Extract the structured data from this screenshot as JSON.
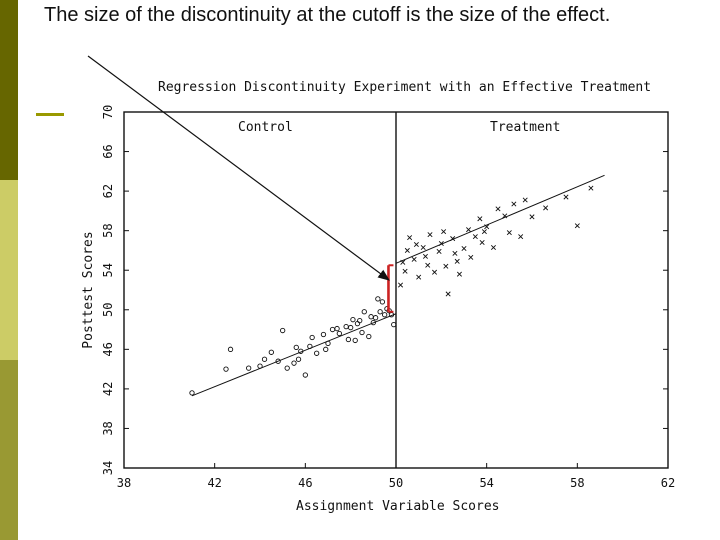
{
  "headline": "The size of the discontinuity at the cutoff is the size of the effect.",
  "colors": {
    "bar_dark": "#666600",
    "bar_light": "#cccc66",
    "bar_mid": "#999933",
    "accent_dash": "#999900",
    "effect_bracket": "#cc2222"
  },
  "chart_data": {
    "type": "scatter",
    "title": "Regression Discontinuity Experiment with an Effective Treatment",
    "xlabel": "Assignment Variable Scores",
    "ylabel": "Posttest Scores",
    "xlim": [
      38,
      62
    ],
    "ylim": [
      34,
      70
    ],
    "xticks": [
      38,
      42,
      46,
      50,
      54,
      58,
      62
    ],
    "yticks": [
      34,
      38,
      42,
      46,
      50,
      54,
      58,
      62,
      66,
      70
    ],
    "cutoff": 50,
    "regions": {
      "left": "Control",
      "right": "Treatment"
    },
    "series": [
      {
        "name": "Control",
        "marker": "o",
        "points": [
          [
            41.0,
            41.6
          ],
          [
            42.5,
            44.0
          ],
          [
            42.7,
            46.0
          ],
          [
            43.5,
            44.1
          ],
          [
            44.0,
            44.3
          ],
          [
            44.2,
            45.0
          ],
          [
            44.5,
            45.7
          ],
          [
            45.0,
            47.9
          ],
          [
            45.2,
            44.1
          ],
          [
            45.5,
            44.6
          ],
          [
            45.7,
            45.0
          ],
          [
            46.0,
            43.4
          ],
          [
            45.8,
            45.8
          ],
          [
            46.2,
            46.3
          ],
          [
            46.5,
            45.6
          ],
          [
            46.8,
            47.5
          ],
          [
            47.0,
            46.6
          ],
          [
            47.2,
            48.0
          ],
          [
            47.5,
            47.6
          ],
          [
            47.8,
            48.3
          ],
          [
            48.0,
            48.2
          ],
          [
            48.2,
            46.9
          ],
          [
            48.4,
            48.9
          ],
          [
            48.6,
            49.8
          ],
          [
            48.8,
            47.3
          ],
          [
            49.0,
            48.7
          ],
          [
            49.1,
            49.2
          ],
          [
            49.3,
            49.8
          ],
          [
            49.5,
            49.5
          ],
          [
            49.6,
            50.1
          ],
          [
            49.8,
            49.5
          ],
          [
            49.9,
            48.5
          ],
          [
            48.5,
            47.7
          ],
          [
            49.2,
            51.1
          ],
          [
            47.4,
            48.1
          ],
          [
            46.3,
            47.2
          ],
          [
            45.6,
            46.2
          ],
          [
            48.9,
            49.3
          ],
          [
            49.4,
            50.8
          ],
          [
            47.9,
            47.0
          ],
          [
            48.1,
            49.0
          ],
          [
            46.9,
            46.0
          ],
          [
            44.8,
            44.8
          ],
          [
            49.7,
            49.9
          ],
          [
            48.3,
            48.6
          ]
        ]
      },
      {
        "name": "Treatment",
        "marker": "x",
        "points": [
          [
            50.2,
            52.5
          ],
          [
            50.3,
            54.8
          ],
          [
            50.5,
            56.0
          ],
          [
            50.6,
            57.3
          ],
          [
            50.8,
            55.1
          ],
          [
            51.0,
            53.3
          ],
          [
            51.2,
            56.3
          ],
          [
            51.4,
            54.5
          ],
          [
            51.5,
            57.6
          ],
          [
            51.7,
            53.8
          ],
          [
            51.9,
            55.9
          ],
          [
            52.0,
            56.7
          ],
          [
            52.2,
            54.4
          ],
          [
            52.3,
            51.6
          ],
          [
            52.5,
            57.2
          ],
          [
            52.6,
            55.7
          ],
          [
            52.8,
            53.6
          ],
          [
            53.0,
            56.2
          ],
          [
            53.2,
            58.1
          ],
          [
            53.3,
            55.3
          ],
          [
            53.5,
            57.4
          ],
          [
            53.7,
            59.2
          ],
          [
            53.8,
            56.8
          ],
          [
            54.0,
            58.4
          ],
          [
            54.3,
            56.3
          ],
          [
            54.5,
            60.2
          ],
          [
            54.8,
            59.5
          ],
          [
            55.0,
            57.8
          ],
          [
            55.2,
            60.7
          ],
          [
            55.5,
            57.4
          ],
          [
            55.7,
            61.1
          ],
          [
            56.0,
            59.4
          ],
          [
            56.6,
            60.3
          ],
          [
            57.5,
            61.4
          ],
          [
            58.0,
            58.5
          ],
          [
            58.6,
            62.3
          ],
          [
            50.4,
            53.9
          ],
          [
            51.3,
            55.4
          ],
          [
            52.7,
            54.9
          ],
          [
            53.9,
            57.9
          ],
          [
            50.9,
            56.6
          ],
          [
            52.1,
            57.9
          ]
        ]
      }
    ],
    "regression_lines": [
      {
        "x": [
          41.0,
          50.0
        ],
        "y": [
          41.3,
          49.6
        ]
      },
      {
        "x": [
          50.0,
          59.2
        ],
        "y": [
          54.7,
          63.6
        ]
      }
    ],
    "effect_bracket": {
      "x": 49.8,
      "y": [
        49.8,
        54.5
      ]
    }
  }
}
